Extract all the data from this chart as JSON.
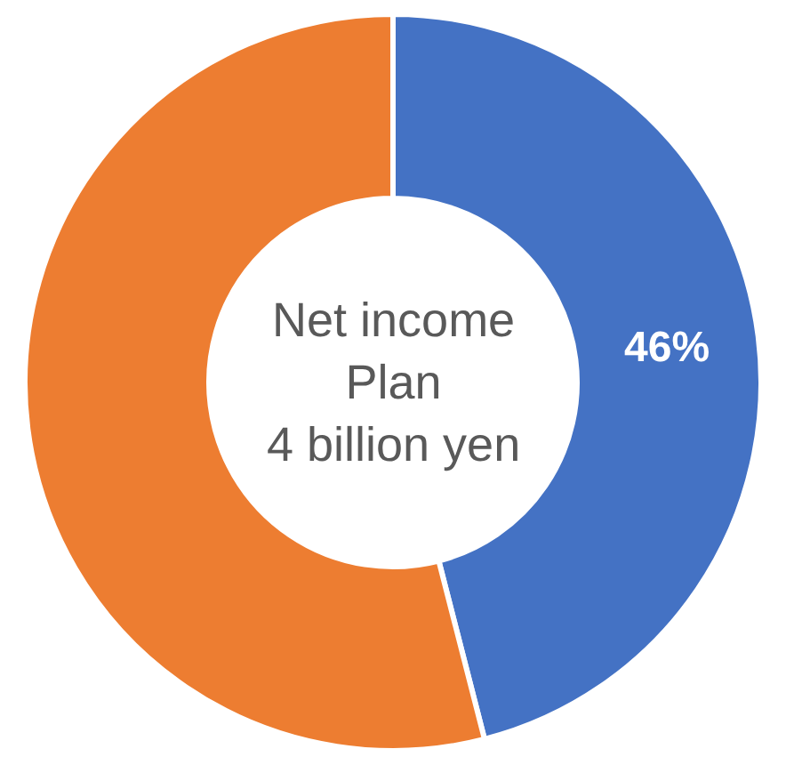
{
  "chart_data": {
    "type": "donut",
    "categories": [
      null,
      null
    ],
    "values": [
      46,
      54
    ],
    "colors": [
      "#4472c4",
      "#ed7d31"
    ],
    "value_labels": [
      "46%",
      null
    ],
    "annotations": [
      "Net income\nPlan\n4 billion yen"
    ],
    "legend": false
  }
}
